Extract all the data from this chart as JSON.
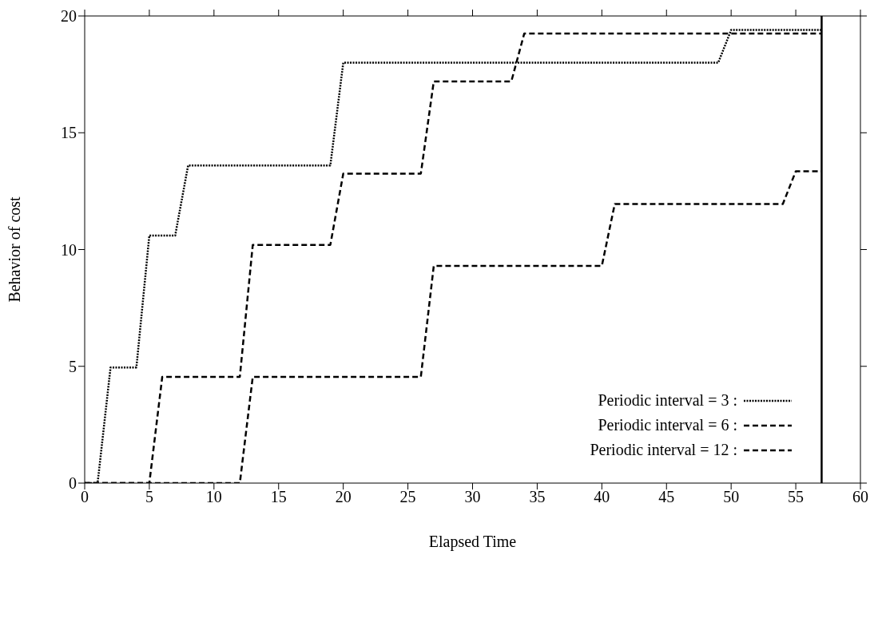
{
  "chart_data": {
    "type": "line",
    "xlabel": "Elapsed Time",
    "ylabel": "Behavior of cost",
    "xlim": [
      0,
      60
    ],
    "xticks": [
      0,
      5,
      10,
      15,
      20,
      25,
      30,
      35,
      40,
      45,
      50,
      55,
      60
    ],
    "ylim": [
      0,
      20
    ],
    "yticks": [
      0,
      5,
      10,
      15,
      20
    ],
    "grid": false,
    "legend": "bottom right",
    "marker": "none",
    "series": [
      {
        "name": "Periodic interval = 3 :",
        "color": "#000000",
        "line_style": "dotted",
        "x": [
          0,
          1,
          2,
          4,
          5,
          7,
          8,
          19,
          20,
          49,
          50,
          57
        ],
        "values": [
          0,
          0,
          4.95,
          4.95,
          10.6,
          10.6,
          13.6,
          13.6,
          18,
          18,
          19.4,
          19.4
        ]
      },
      {
        "name": "Periodic interval = 6 :",
        "color": "#000000",
        "line_style": "dashed",
        "x": [
          0,
          5,
          6,
          12,
          13,
          19,
          20,
          26,
          27,
          33,
          34,
          57
        ],
        "values": [
          0,
          0,
          4.55,
          4.55,
          10.2,
          10.2,
          13.25,
          13.25,
          17.2,
          17.2,
          19.25,
          19.25
        ]
      },
      {
        "name": "Periodic interval = 12 :",
        "color": "#000000",
        "line_style": "dashed",
        "x": [
          0,
          12,
          13,
          26,
          27,
          40,
          41,
          54,
          55,
          57
        ],
        "values": [
          0,
          0,
          4.55,
          4.55,
          9.3,
          9.3,
          11.95,
          11.95,
          13.35,
          13.35
        ]
      }
    ],
    "ref_lines": [
      {
        "axis": "x",
        "value": 57,
        "color": "#000000",
        "line_style": "solid"
      }
    ]
  }
}
